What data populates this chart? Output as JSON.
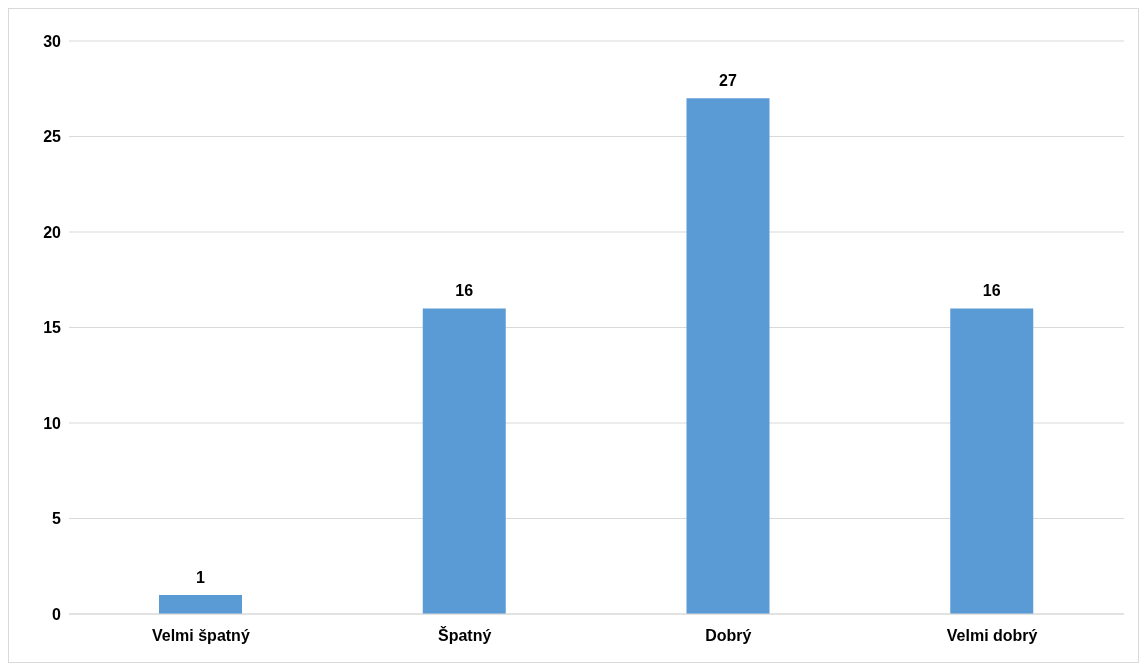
{
  "chart_data": {
    "type": "bar",
    "categories": [
      "Velmi špatný",
      "Špatný",
      "Dobrý",
      "Velmi dobrý"
    ],
    "values": [
      1,
      16,
      27,
      16
    ],
    "color": "#5b9bd5",
    "ylim": [
      0,
      30
    ],
    "yticks": [
      0,
      5,
      10,
      15,
      20,
      25,
      30
    ],
    "grid": "y",
    "data_labels": true,
    "legend": false
  }
}
